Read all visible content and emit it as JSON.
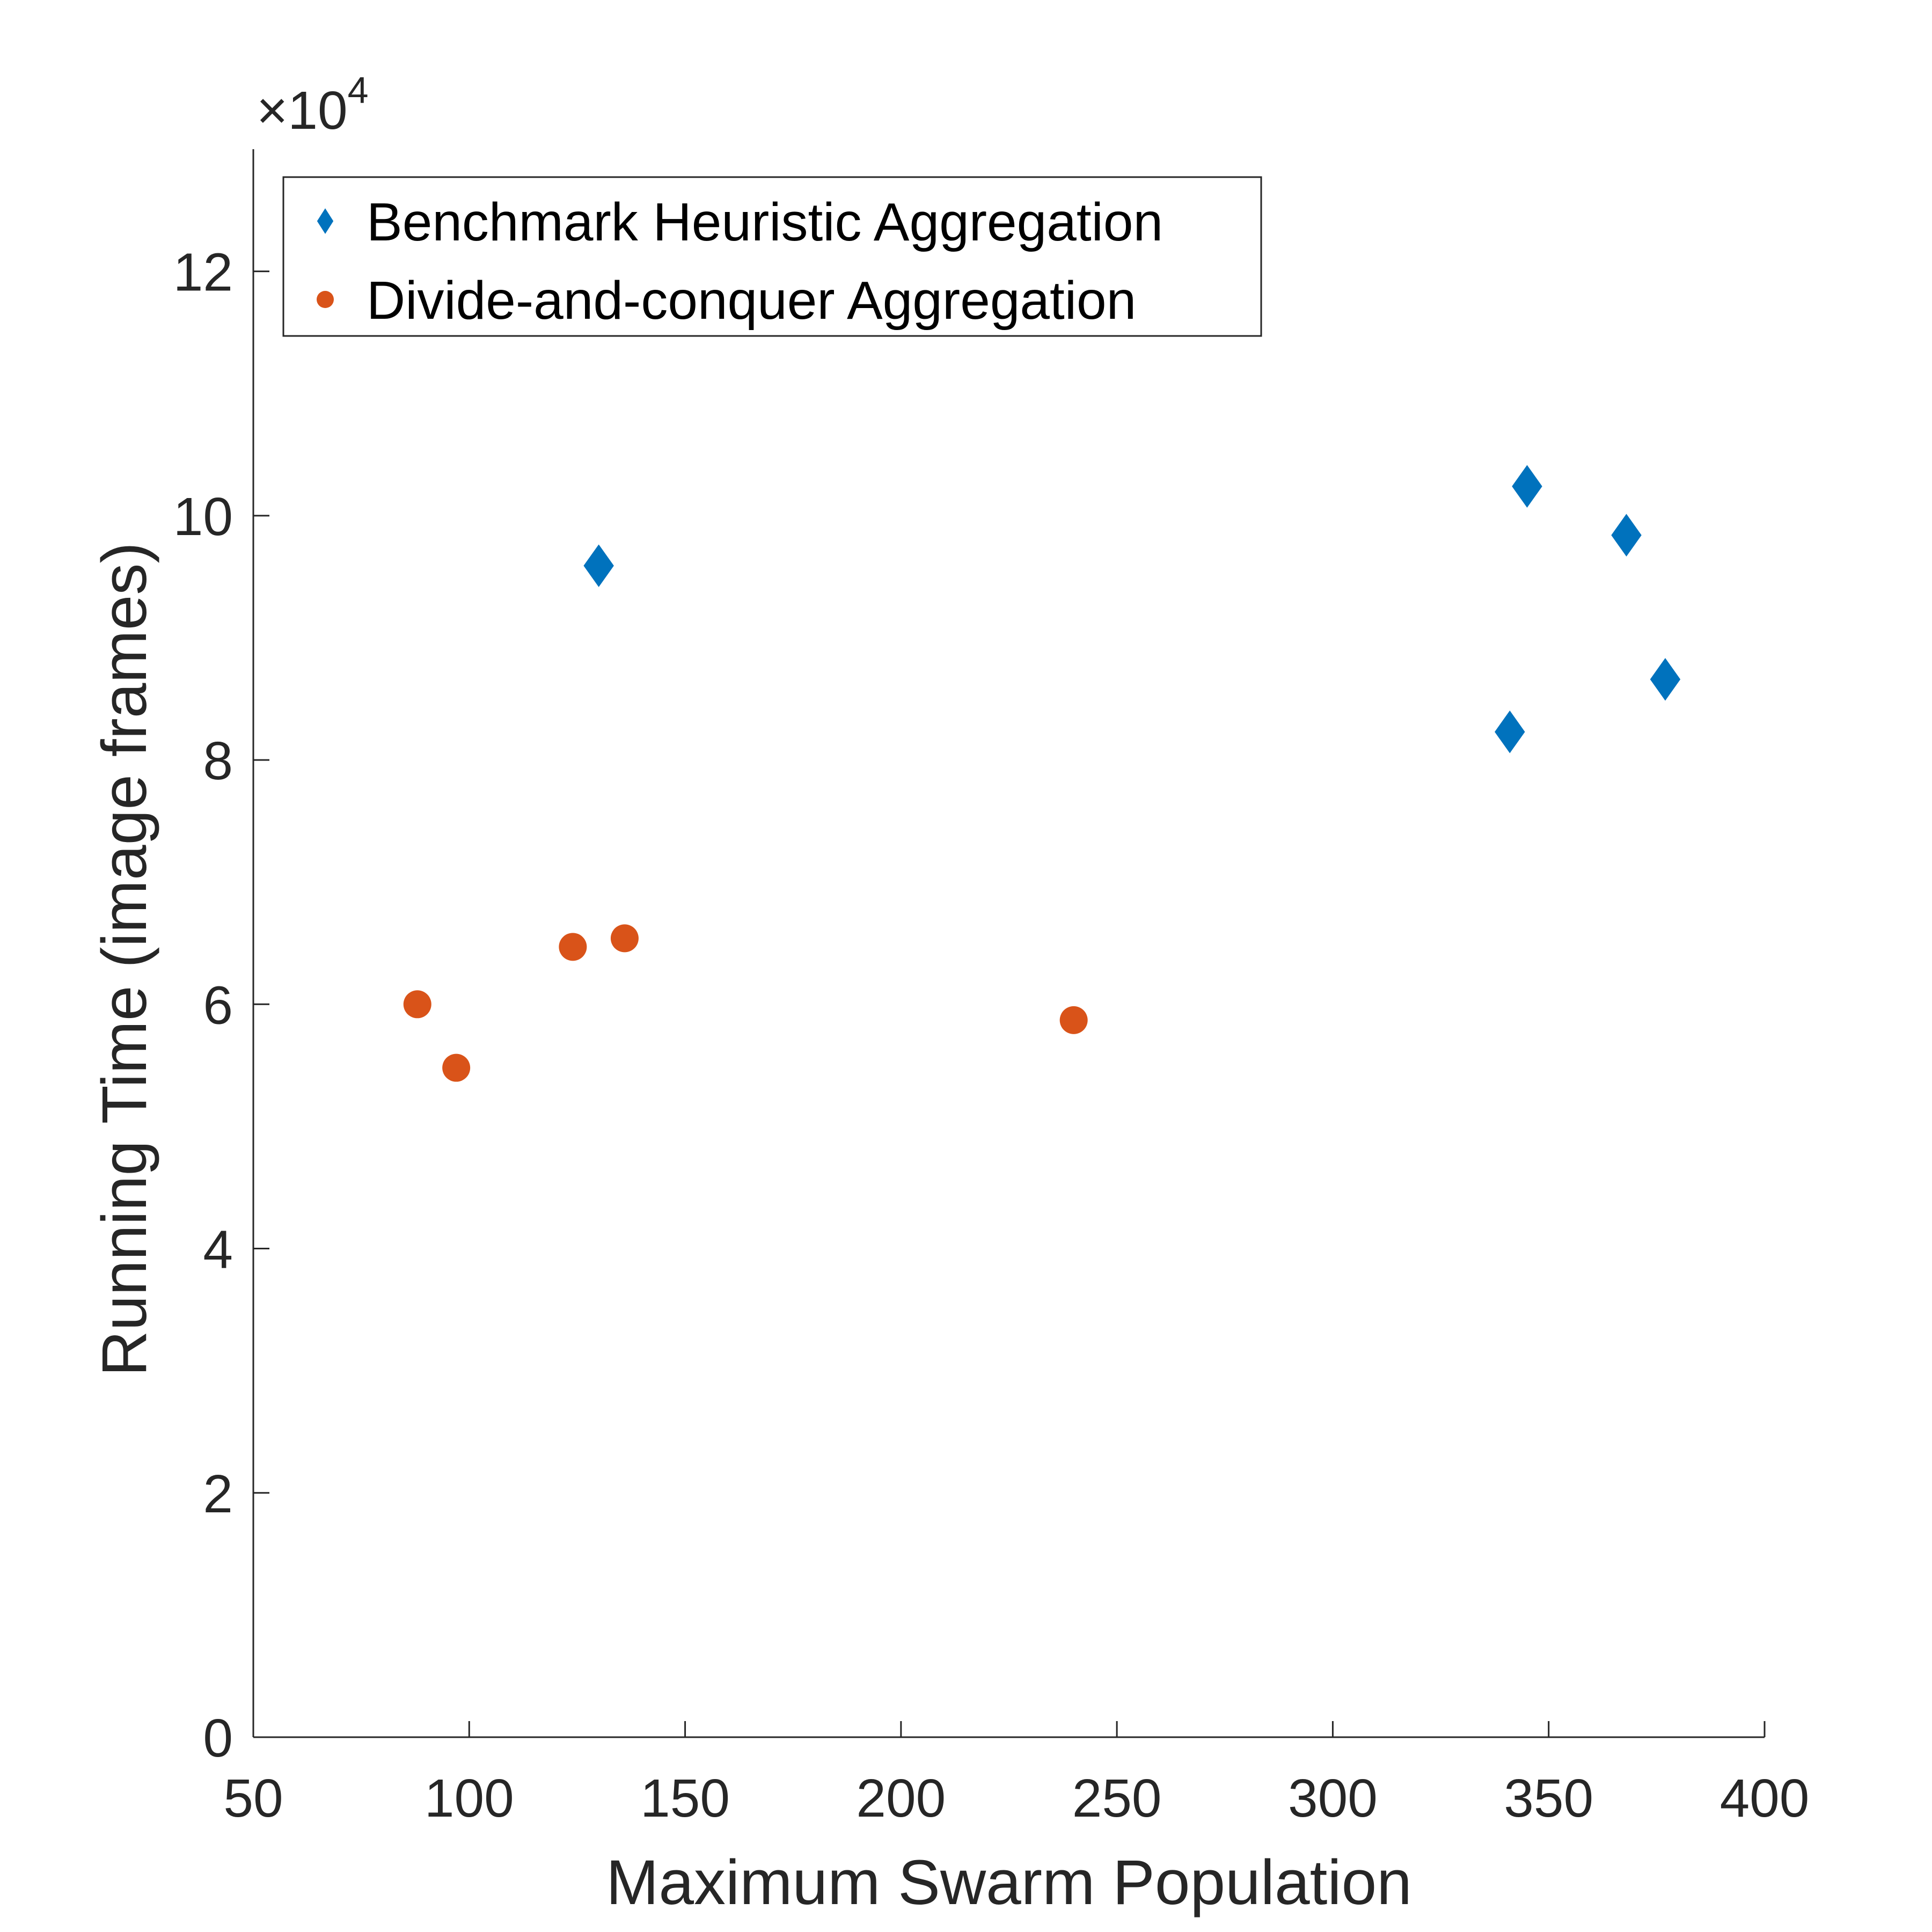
{
  "chart_data": {
    "type": "scatter",
    "xlabel": "Maximum Swarm Population",
    "ylabel": "Running Time (image frames)",
    "xlim": [
      50,
      400
    ],
    "ylim": [
      0,
      130000
    ],
    "x_ticks": [
      50,
      100,
      150,
      200,
      250,
      300,
      350,
      400
    ],
    "y_ticks": [
      0,
      2,
      4,
      6,
      8,
      10,
      12
    ],
    "y_tick_labels": [
      "0",
      "2",
      "4",
      "6",
      "8",
      "10",
      "12"
    ],
    "y_multiplier_prefix": "×10",
    "y_multiplier_exponent": "4",
    "grid": false,
    "legend_position": "top-left",
    "series": [
      {
        "name": "Benchmark Heuristic Aggregation",
        "marker": "diamond",
        "color": "#0072BD",
        "points": [
          {
            "x": 130,
            "y": 95900
          },
          {
            "x": 341,
            "y": 82300
          },
          {
            "x": 345,
            "y": 102400
          },
          {
            "x": 368,
            "y": 98400
          },
          {
            "x": 377,
            "y": 86600
          }
        ]
      },
      {
        "name": "Divide-and-conquer Aggregation",
        "marker": "circle",
        "color": "#D95319",
        "points": [
          {
            "x": 88,
            "y": 60000
          },
          {
            "x": 97,
            "y": 54800
          },
          {
            "x": 124,
            "y": 64700
          },
          {
            "x": 136,
            "y": 65400
          },
          {
            "x": 240,
            "y": 58700
          }
        ]
      }
    ]
  }
}
